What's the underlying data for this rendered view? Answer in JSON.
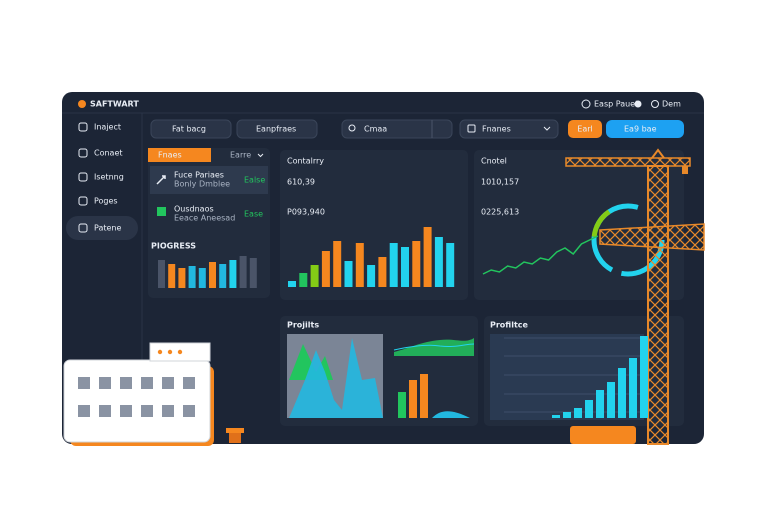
{
  "header": {
    "brand": "SAFTWART",
    "user": "Easp Pauet",
    "help": "Dem"
  },
  "sidebar": [
    "Inaject",
    "Conaet",
    "Isetnng",
    "Poges",
    "Patene"
  ],
  "toolbar": {
    "filter1": "Fat bacg",
    "filter2": "Eanpfraes",
    "search": "Cmaa",
    "select": "Fnanes",
    "button1": "Earl",
    "button2": "Ea9 bae"
  },
  "list_card": {
    "tab": "Fnaes",
    "tab2": "Earre",
    "items": [
      {
        "title": "Fuce Pariaes",
        "subtitle": "Bonly Dmblee",
        "value": "Ealse"
      },
      {
        "title": "Ousdnaos",
        "subtitle": "Eeace Aneesad",
        "value": "Ease"
      }
    ],
    "title": "PIOGRESS",
    "bars": {
      "values": [
        28,
        24,
        20,
        22,
        20,
        26,
        24,
        28,
        32,
        30
      ],
      "colors": [
        "#4a5468",
        "#f5871f",
        "#f5871f",
        "#22b8e0",
        "#22b8e0",
        "#f5871f",
        "#22b8e0",
        "#22d3ee",
        "#4a5468",
        "#4a5468"
      ]
    }
  },
  "card_sales": {
    "label": "Contalrry",
    "value": "610,39",
    "sub": "P093,940",
    "bars": {
      "values": [
        6,
        14,
        22,
        36,
        46,
        26,
        44,
        22,
        30,
        44,
        40,
        46,
        60,
        50,
        44
      ],
      "colors": [
        "#22d3ee",
        "#22c55e",
        "#84cc16",
        "#f5871f",
        "#f5871f",
        "#22d3ee",
        "#f5871f",
        "#22d3ee",
        "#f5871f",
        "#22d3ee",
        "#22d3ee",
        "#f5871f",
        "#f5871f",
        "#22d3ee",
        "#22d3ee"
      ]
    }
  },
  "card_content": {
    "label": "Cnotel",
    "value": "1010,157",
    "sub": "0225,613",
    "line": {
      "values": [
        4,
        8,
        6,
        12,
        10,
        16,
        14,
        20,
        18,
        26,
        30,
        24,
        34,
        38,
        42
      ],
      "color": "#22c55e"
    }
  },
  "card_projects": {
    "title": "Projilts",
    "bars": {
      "values": [
        26,
        38,
        44
      ],
      "colors": [
        "#22c55e",
        "#f5871f",
        "#f5871f"
      ]
    }
  },
  "card_profile": {
    "title": "Profiltce",
    "bars": {
      "values": [
        3,
        6,
        10,
        18,
        28,
        36,
        50,
        60,
        82
      ],
      "colors": [
        "#22d3ee",
        "#22d3ee",
        "#22d3ee",
        "#22d3ee",
        "#22d3ee",
        "#22d3ee",
        "#22d3ee",
        "#22d3ee",
        "#22d3ee"
      ]
    }
  }
}
